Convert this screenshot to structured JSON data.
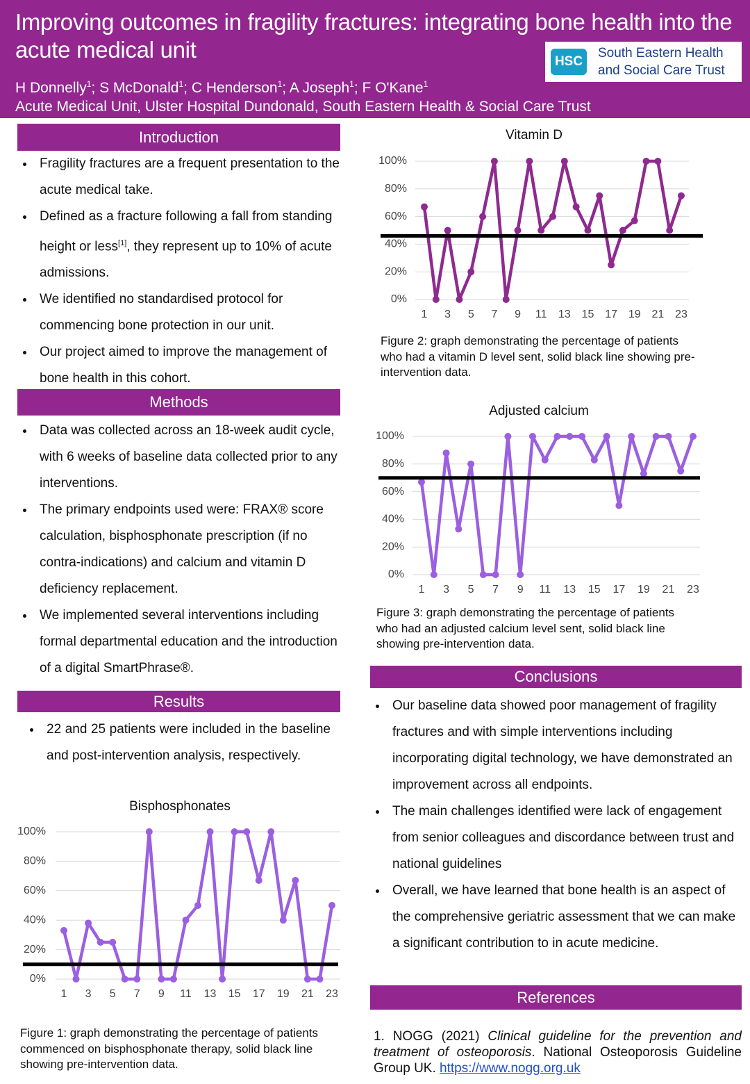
{
  "header": {
    "title": "Improving outcomes in fragility fractures: integrating bone health into the acute medical unit",
    "authors": [
      {
        "name": "H Donnelly",
        "sup": "1"
      },
      {
        "name": "; S McDonald",
        "sup": "1"
      },
      {
        "name": "; C Henderson",
        "sup": "1"
      },
      {
        "name": "; A Joseph",
        "sup": "1"
      },
      {
        "name": "; F O'Kane",
        "sup": "1"
      }
    ],
    "affiliation": "Acute Medical Unit, Ulster Hospital Dundonald, South Eastern Health & Social Care Trust",
    "logo": {
      "badge": "HSC",
      "line1": "South Eastern Health",
      "line2": "and Social Care Trust"
    }
  },
  "introduction": {
    "heading": "Introduction",
    "bullets": [
      "Fragility fractures are a frequent presentation to the acute medical take.",
      {
        "text": "Defined as a fracture following a fall from standing height or less",
        "sup": "[1]",
        "after": ", they represent up to 10% of acute admissions."
      },
      "We identified no standardised protocol for commencing bone protection in our unit.",
      "Our project aimed to improve the management of bone health in this cohort."
    ]
  },
  "methods": {
    "heading": "Methods",
    "bullets": [
      "Data was collected across an 18-week audit cycle, with 6 weeks of baseline data collected prior to any interventions.",
      "The primary endpoints used were: FRAX® score calculation, bisphosphonate prescription (if no contra-indications) and calcium and vitamin D deficiency replacement.",
      "We implemented several interventions including formal departmental education and the introduction of a digital SmartPhrase®."
    ]
  },
  "results": {
    "heading": "Results",
    "bullets": [
      "22 and 25 patients were included in the baseline and post-intervention analysis, respectively."
    ]
  },
  "conclusions": {
    "heading": "Conclusions",
    "bullets": [
      "Our baseline data showed poor management of fragility fractures and with simple interventions including incorporating digital technology, we have demonstrated an improvement across all endpoints.",
      "The main challenges identified were lack of engagement from senior colleagues and discordance between trust and national guidelines",
      "Overall, we have learned that bone health is an aspect of the comprehensive geriatric assessment that we can make a significant contribution to in acute medicine."
    ]
  },
  "references": {
    "heading": "References",
    "items": [
      {
        "prefix": "1. NOGG (2021) ",
        "title": "Clinical guideline for the prevention and treatment of osteoporosis",
        "suffix": ". National Osteoporosis Guideline Group UK. ",
        "url": "https://www.nogg.org.uk"
      }
    ]
  },
  "chart_data": [
    {
      "type": "line",
      "title": "Bisphosphonates",
      "caption": "Figure 1: graph demonstrating the percentage of patients commenced on bisphosphonate therapy, solid black line showing pre-intervention data.",
      "x": [
        1,
        2,
        3,
        4,
        5,
        6,
        7,
        8,
        9,
        10,
        11,
        12,
        13,
        14,
        15,
        16,
        17,
        18,
        19,
        20,
        21,
        22,
        23
      ],
      "xlim": [
        1,
        23
      ],
      "xticks": [
        1,
        3,
        5,
        7,
        9,
        11,
        13,
        15,
        17,
        19,
        21,
        23
      ],
      "ylim": [
        0,
        100
      ],
      "yticks": [
        {
          "value": 0,
          "label": "0%"
        },
        {
          "value": 20,
          "label": "20%"
        },
        {
          "value": 40,
          "label": "40%"
        },
        {
          "value": 60,
          "label": "60%"
        },
        {
          "value": 80,
          "label": "80%"
        },
        {
          "value": 100,
          "label": "100%"
        }
      ],
      "grid": true,
      "series": [
        {
          "color": "#9b5fe0",
          "values": [
            33,
            0,
            38,
            25,
            25,
            0,
            0,
            100,
            0,
            0,
            40,
            50,
            100,
            0,
            100,
            100,
            67,
            100,
            40,
            67,
            0,
            0,
            50
          ]
        }
      ],
      "reference_line": 10,
      "reference_color": "#000000"
    },
    {
      "type": "line",
      "title": "Vitamin D",
      "caption": "Figure 2: graph demonstrating the percentage of patients who had a vitamin D level sent, solid black line showing pre-intervention data.",
      "x": [
        1,
        2,
        3,
        4,
        5,
        6,
        7,
        8,
        9,
        10,
        11,
        12,
        13,
        14,
        15,
        16,
        17,
        18,
        19,
        20,
        21,
        22,
        23
      ],
      "xlim": [
        1,
        23
      ],
      "xticks": [
        1,
        3,
        5,
        7,
        9,
        11,
        13,
        15,
        17,
        19,
        21,
        23
      ],
      "ylim": [
        0,
        100
      ],
      "yticks": [
        {
          "value": 0,
          "label": "0%"
        },
        {
          "value": 20,
          "label": "20%"
        },
        {
          "value": 40,
          "label": "40%"
        },
        {
          "value": 60,
          "label": "60%"
        },
        {
          "value": 80,
          "label": "80%"
        },
        {
          "value": 100,
          "label": "100%"
        }
      ],
      "grid": true,
      "series": [
        {
          "color": "#8e2a90",
          "values": [
            67,
            0,
            50,
            0,
            20,
            60,
            100,
            0,
            50,
            100,
            50,
            60,
            100,
            67,
            50,
            75,
            25,
            50,
            57,
            100,
            100,
            50,
            75
          ]
        }
      ],
      "reference_line": 46,
      "reference_color": "#000000"
    },
    {
      "type": "line",
      "title": "Adjusted calcium",
      "caption": "Figure 3: graph demonstrating the percentage of patients who had an adjusted calcium level sent, solid black line showing pre-intervention data.",
      "x": [
        1,
        2,
        3,
        4,
        5,
        6,
        7,
        8,
        9,
        10,
        11,
        12,
        13,
        14,
        15,
        16,
        17,
        18,
        19,
        20,
        21,
        22,
        23
      ],
      "xlim": [
        1,
        23
      ],
      "xticks": [
        1,
        3,
        5,
        7,
        9,
        11,
        13,
        15,
        17,
        19,
        21,
        23
      ],
      "ylim": [
        0,
        100
      ],
      "yticks": [
        {
          "value": 0,
          "label": "0%"
        },
        {
          "value": 20,
          "label": "20%"
        },
        {
          "value": 40,
          "label": "40%"
        },
        {
          "value": 60,
          "label": "60%"
        },
        {
          "value": 80,
          "label": "80%"
        },
        {
          "value": 100,
          "label": "100%"
        }
      ],
      "grid": true,
      "series": [
        {
          "color": "#9b5fe0",
          "values": [
            67,
            0,
            88,
            33,
            80,
            0,
            0,
            100,
            0,
            100,
            83,
            100,
            100,
            100,
            83,
            100,
            50,
            100,
            73,
            100,
            100,
            75,
            100
          ]
        }
      ],
      "reference_line": 70,
      "reference_color": "#000000"
    }
  ]
}
